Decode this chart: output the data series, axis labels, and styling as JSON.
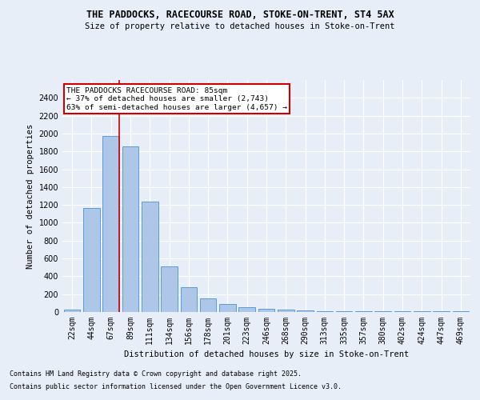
{
  "title1": "THE PADDOCKS, RACECOURSE ROAD, STOKE-ON-TRENT, ST4 5AX",
  "title2": "Size of property relative to detached houses in Stoke-on-Trent",
  "xlabel": "Distribution of detached houses by size in Stoke-on-Trent",
  "ylabel": "Number of detached properties",
  "categories": [
    "22sqm",
    "44sqm",
    "67sqm",
    "89sqm",
    "111sqm",
    "134sqm",
    "156sqm",
    "178sqm",
    "201sqm",
    "223sqm",
    "246sqm",
    "268sqm",
    "290sqm",
    "313sqm",
    "335sqm",
    "357sqm",
    "380sqm",
    "402sqm",
    "424sqm",
    "447sqm",
    "469sqm"
  ],
  "values": [
    30,
    1170,
    1970,
    1855,
    1240,
    515,
    275,
    155,
    90,
    50,
    40,
    30,
    20,
    10,
    5,
    5,
    5,
    5,
    5,
    5,
    5
  ],
  "bar_color": "#aec6e8",
  "bar_edge_color": "#5b9bd5",
  "bg_color": "#e8eef7",
  "grid_color": "#ffffff",
  "vline_idx": 2,
  "annotation_text": "THE PADDOCKS RACECOURSE ROAD: 85sqm\n← 37% of detached houses are smaller (2,743)\n63% of semi-detached houses are larger (4,657) →",
  "annotation_box_color": "#ffffff",
  "annotation_box_edge": "#cc0000",
  "vline_color": "#cc0000",
  "footer1": "Contains HM Land Registry data © Crown copyright and database right 2025.",
  "footer2": "Contains public sector information licensed under the Open Government Licence v3.0.",
  "ylim": [
    0,
    2600
  ],
  "yticks": [
    0,
    200,
    400,
    600,
    800,
    1000,
    1200,
    1400,
    1600,
    1800,
    2000,
    2200,
    2400
  ]
}
